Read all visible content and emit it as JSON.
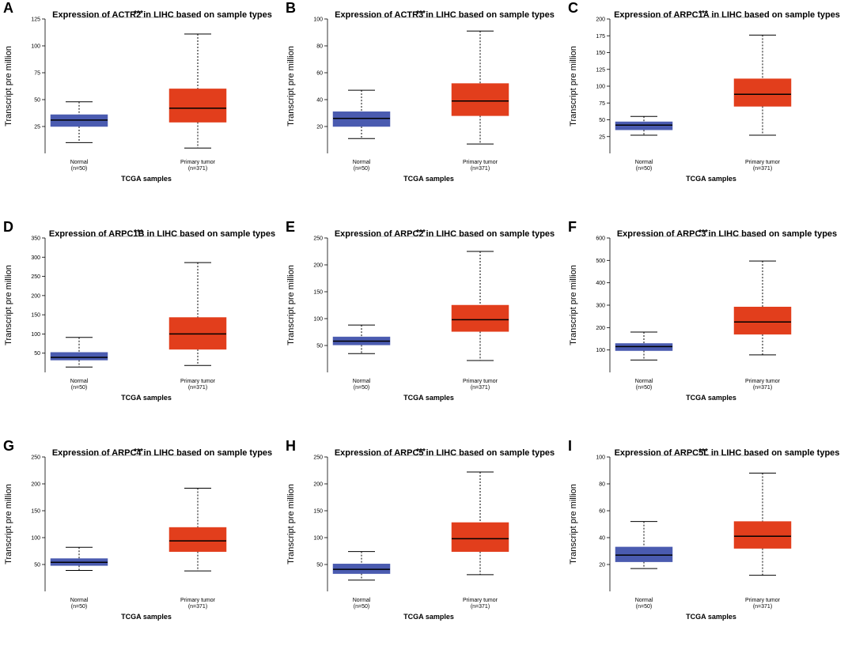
{
  "chart_data": [
    {
      "panel": "A",
      "type": "box",
      "title": "Expression of ACTR2 in LIHC based on sample types",
      "ylabel": "Transcript pre million",
      "xlabel": "TCGA samples",
      "ylim": [
        0,
        125
      ],
      "yticks": [
        25,
        50,
        75,
        100,
        125
      ],
      "significance": "***",
      "groups": [
        {
          "name": "Normal",
          "n": "(n=50)",
          "color": "#4a5bb0",
          "min": 10,
          "q1": 25,
          "median": 31,
          "q3": 36,
          "max": 48
        },
        {
          "name": "Primary tumor",
          "n": "(n=371)",
          "color": "#e23e1c",
          "min": 5,
          "q1": 29,
          "median": 42,
          "q3": 60,
          "max": 111
        }
      ]
    },
    {
      "panel": "B",
      "type": "box",
      "title": "Expression of ACTR3 in LIHC based on sample types",
      "ylabel": "Transcript pre million",
      "xlabel": "TCGA samples",
      "ylim": [
        0,
        100
      ],
      "yticks": [
        20,
        40,
        60,
        80,
        100
      ],
      "significance": "***",
      "groups": [
        {
          "name": "Normal",
          "n": "(n=50)",
          "color": "#4a5bb0",
          "min": 11,
          "q1": 20,
          "median": 26,
          "q3": 31,
          "max": 47
        },
        {
          "name": "Primary tumor",
          "n": "(n=371)",
          "color": "#e23e1c",
          "min": 7,
          "q1": 28,
          "median": 39,
          "q3": 52,
          "max": 91
        }
      ]
    },
    {
      "panel": "C",
      "type": "box",
      "title": "Expression of ARPC1A in LIHC based on sample types",
      "ylabel": "Transcript pre million",
      "xlabel": "TCGA samples",
      "ylim": [
        0,
        200
      ],
      "yticks": [
        25,
        50,
        75,
        100,
        125,
        150,
        175,
        200
      ],
      "significance": "***",
      "groups": [
        {
          "name": "Normal",
          "n": "(n=50)",
          "color": "#4a5bb0",
          "min": 27,
          "q1": 35,
          "median": 42,
          "q3": 47,
          "max": 55
        },
        {
          "name": "Primary tumor",
          "n": "(n=371)",
          "color": "#e23e1c",
          "min": 27,
          "q1": 70,
          "median": 88,
          "q3": 111,
          "max": 176
        }
      ]
    },
    {
      "panel": "D",
      "type": "box",
      "title": "Expression of ARPC1B in LIHC based on sample types",
      "ylabel": "Transcript pre million",
      "xlabel": "TCGA samples",
      "ylim": [
        0,
        350
      ],
      "yticks": [
        50,
        100,
        150,
        200,
        250,
        300,
        350
      ],
      "significance": "***",
      "groups": [
        {
          "name": "Normal",
          "n": "(n=50)",
          "color": "#4a5bb0",
          "min": 14,
          "q1": 32,
          "median": 39,
          "q3": 52,
          "max": 91
        },
        {
          "name": "Primary tumor",
          "n": "(n=371)",
          "color": "#e23e1c",
          "min": 18,
          "q1": 60,
          "median": 100,
          "q3": 143,
          "max": 286
        }
      ]
    },
    {
      "panel": "E",
      "type": "box",
      "title": "Expression of ARPC2 in LIHC based on sample types",
      "ylabel": "Transcript pre million",
      "xlabel": "TCGA samples",
      "ylim": [
        0,
        250
      ],
      "yticks": [
        50,
        100,
        150,
        200,
        250
      ],
      "significance": "***",
      "groups": [
        {
          "name": "Normal",
          "n": "(n=50)",
          "color": "#4a5bb0",
          "min": 35,
          "q1": 51,
          "median": 58,
          "q3": 66,
          "max": 88
        },
        {
          "name": "Primary tumor",
          "n": "(n=371)",
          "color": "#e23e1c",
          "min": 22,
          "q1": 76,
          "median": 98,
          "q3": 125,
          "max": 225
        }
      ]
    },
    {
      "panel": "F",
      "type": "box",
      "title": "Expression of ARPC3 in LIHC based on sample types",
      "ylabel": "Transcript pre million",
      "xlabel": "TCGA samples",
      "ylim": [
        0,
        600
      ],
      "yticks": [
        100,
        200,
        300,
        400,
        500,
        600
      ],
      "significance": "***",
      "groups": [
        {
          "name": "Normal",
          "n": "(n=50)",
          "color": "#4a5bb0",
          "min": 55,
          "q1": 97,
          "median": 115,
          "q3": 129,
          "max": 180
        },
        {
          "name": "Primary tumor",
          "n": "(n=371)",
          "color": "#e23e1c",
          "min": 78,
          "q1": 170,
          "median": 225,
          "q3": 292,
          "max": 497
        }
      ]
    },
    {
      "panel": "G",
      "type": "box",
      "title": "Expression of ARPC4 in LIHC based on sample types",
      "ylabel": "Transcript pre million",
      "xlabel": "TCGA samples",
      "ylim": [
        0,
        250
      ],
      "yticks": [
        50,
        100,
        150,
        200,
        250
      ],
      "significance": "***",
      "groups": [
        {
          "name": "Normal",
          "n": "(n=50)",
          "color": "#4a5bb0",
          "min": 39,
          "q1": 48,
          "median": 54,
          "q3": 61,
          "max": 82
        },
        {
          "name": "Primary tumor",
          "n": "(n=371)",
          "color": "#e23e1c",
          "min": 38,
          "q1": 74,
          "median": 94,
          "q3": 119,
          "max": 192
        }
      ]
    },
    {
      "panel": "H",
      "type": "box",
      "title": "Expression of ARPC5 in LIHC based on sample types",
      "ylabel": "Transcript pre million",
      "xlabel": "TCGA samples",
      "ylim": [
        0,
        250
      ],
      "yticks": [
        50,
        100,
        150,
        200,
        250
      ],
      "significance": "***",
      "groups": [
        {
          "name": "Normal",
          "n": "(n=50)",
          "color": "#4a5bb0",
          "min": 21,
          "q1": 33,
          "median": 41,
          "q3": 51,
          "max": 74
        },
        {
          "name": "Primary tumor",
          "n": "(n=371)",
          "color": "#e23e1c",
          "min": 31,
          "q1": 74,
          "median": 98,
          "q3": 128,
          "max": 222
        }
      ]
    },
    {
      "panel": "I",
      "type": "box",
      "title": "Expression of ARPC5L in LIHC based on sample types",
      "ylabel": "Transcript pre million",
      "xlabel": "TCGA samples",
      "ylim": [
        0,
        100
      ],
      "yticks": [
        20,
        40,
        60,
        80,
        100
      ],
      "significance": "***",
      "groups": [
        {
          "name": "Normal",
          "n": "(n=50)",
          "color": "#4a5bb0",
          "min": 17,
          "q1": 22,
          "median": 27,
          "q3": 33,
          "max": 52
        },
        {
          "name": "Primary tumor",
          "n": "(n=371)",
          "color": "#e23e1c",
          "min": 12,
          "q1": 32,
          "median": 41,
          "q3": 52,
          "max": 88
        }
      ]
    }
  ]
}
